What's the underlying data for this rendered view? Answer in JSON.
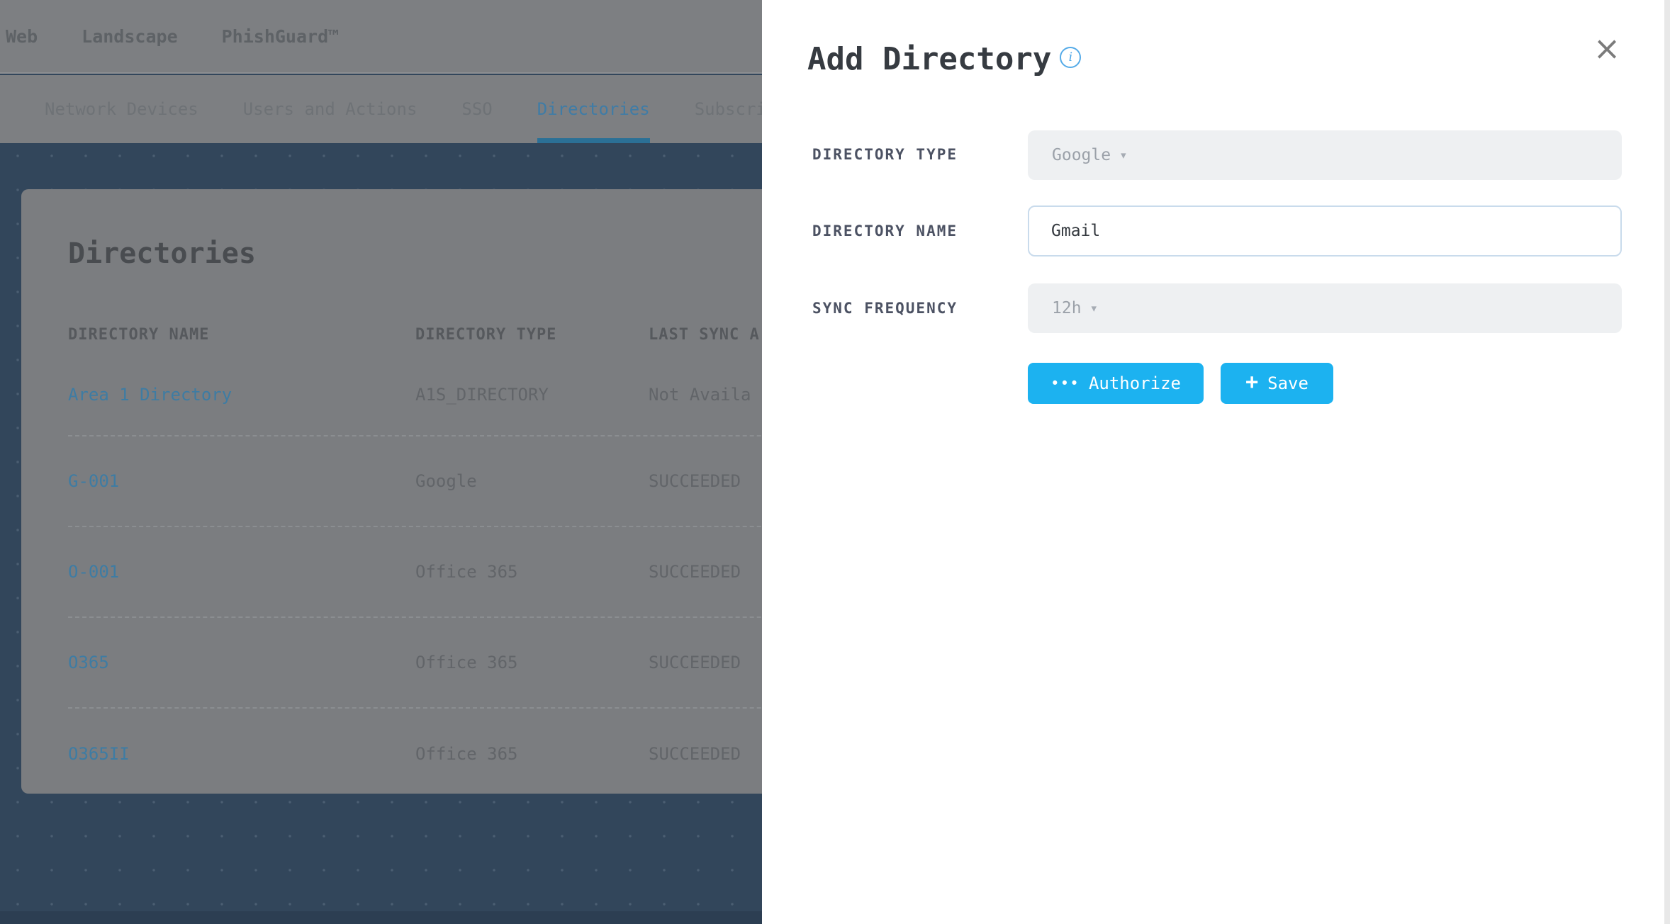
{
  "header": {
    "brand": [
      "Web",
      "Landscape",
      "PhishGuard™"
    ]
  },
  "tabs": [
    {
      "label": "Network Devices",
      "active": false
    },
    {
      "label": "Users and Actions",
      "active": false
    },
    {
      "label": "SSO",
      "active": false
    },
    {
      "label": "Directories",
      "active": true
    },
    {
      "label": "Subscri",
      "active": false
    }
  ],
  "directories_card": {
    "title": "Directories",
    "table": {
      "columns": [
        "DIRECTORY NAME",
        "DIRECTORY TYPE",
        "LAST SYNC A"
      ],
      "rows": [
        {
          "name": "Area 1 Directory",
          "type": "A1S_DIRECTORY",
          "last_sync": "Not Availa"
        },
        {
          "name": "G-001",
          "type": "Google",
          "last_sync": "SUCCEEDED"
        },
        {
          "name": "O-001",
          "type": "Office 365",
          "last_sync": "SUCCEEDED"
        },
        {
          "name": "O365",
          "type": "Office 365",
          "last_sync": "SUCCEEDED"
        },
        {
          "name": "O365II",
          "type": "Office 365",
          "last_sync": "SUCCEEDED"
        }
      ]
    }
  },
  "drawer": {
    "title": "Add Directory",
    "fields": [
      {
        "label": "DIRECTORY TYPE",
        "value": "Google",
        "control": "select"
      },
      {
        "label": "DIRECTORY NAME",
        "value": "Gmail",
        "control": "input"
      },
      {
        "label": "SYNC FREQUENCY",
        "value": "12h",
        "control": "select"
      }
    ],
    "buttons": [
      {
        "label": "Authorize",
        "icon": "ellipsis"
      },
      {
        "label": "Save",
        "icon": "plus"
      }
    ],
    "icons": {
      "info": "i",
      "caret": "▾",
      "ellipsis": "•••",
      "plus": "+",
      "close": "×"
    }
  },
  "colors": {
    "accent": "#1cb2f0",
    "link": "#3e7ca3",
    "active_tab": "#3f7ca6",
    "tab_underline": "#2b7096",
    "page_background": "#32465b",
    "info_icon": "#55abe8"
  }
}
